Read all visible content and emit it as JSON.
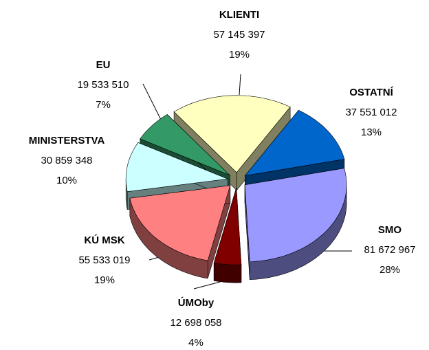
{
  "chart_data": {
    "type": "pie3d",
    "categories": [
      "KLIENTI",
      "OSTATNÍ",
      "SMO",
      "ÚMOby",
      "KÚ MSK",
      "MINISTERSTVA",
      "EU"
    ],
    "values": [
      57145397,
      37551012,
      81672967,
      12698058,
      55533019,
      30859348,
      19533510
    ],
    "value_labels": [
      "57 145 397",
      "37 551 012",
      "81 672 967",
      "12 698 058",
      "55 533 019",
      "30 859 348",
      "19 533 510"
    ],
    "percent_labels": [
      "19%",
      "13%",
      "28%",
      "4%",
      "19%",
      "10%",
      "7%"
    ],
    "colors": [
      "#ffffc0",
      "#0066cc",
      "#9999ff",
      "#800000",
      "#ff8080",
      "#ccffff",
      "#339966"
    ]
  }
}
